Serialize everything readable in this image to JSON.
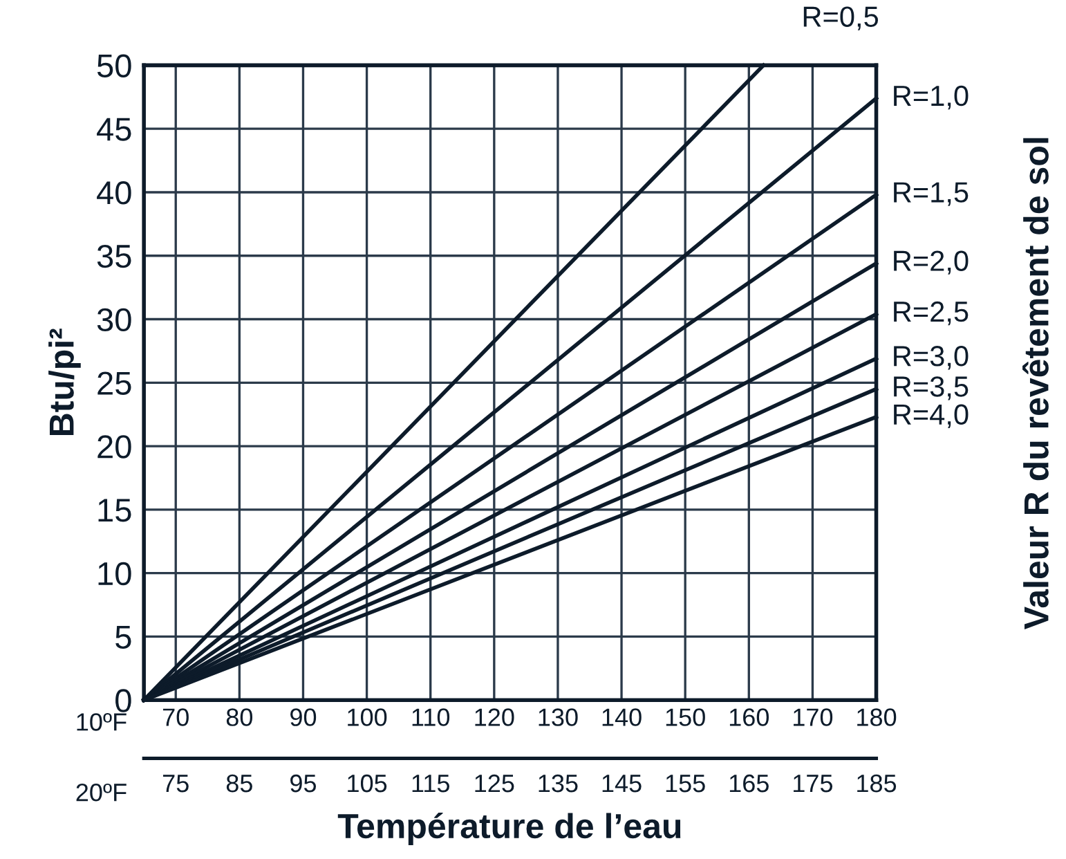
{
  "chart_data": {
    "type": "line",
    "xlabel": "Température de l’eau",
    "ylabel": "Btu/pi²",
    "y2label": "Valeur R du revêtement de sol",
    "annotations": [
      "10ºF",
      "20ºF"
    ],
    "xlim": [
      65,
      180
    ],
    "xticks": [
      70,
      80,
      90,
      100,
      110,
      120,
      130,
      140,
      150,
      160,
      170,
      180
    ],
    "x2lim": [
      70,
      185
    ],
    "x2ticks": [
      75,
      85,
      95,
      105,
      115,
      125,
      135,
      145,
      155,
      165,
      175,
      185
    ],
    "ylim": [
      0,
      50
    ],
    "yticks": [
      0,
      5,
      10,
      15,
      20,
      25,
      30,
      35,
      40,
      45,
      50
    ],
    "grid": true,
    "marker": "none",
    "line_style": "solid",
    "series": [
      {
        "name": "R=0,5",
        "color": "#0d1b2a",
        "x": [
          65,
          162.3
        ],
        "values": [
          0,
          50
        ]
      },
      {
        "name": "R=1,0",
        "color": "#0d1b2a",
        "x": [
          65,
          180
        ],
        "values": [
          0,
          47.4
        ]
      },
      {
        "name": "R=1,5",
        "color": "#0d1b2a",
        "x": [
          65,
          180
        ],
        "values": [
          0,
          39.8
        ]
      },
      {
        "name": "R=2,0",
        "color": "#0d1b2a",
        "x": [
          65,
          180
        ],
        "values": [
          0,
          34.4
        ]
      },
      {
        "name": "R=2,5",
        "color": "#0d1b2a",
        "x": [
          65,
          180
        ],
        "values": [
          0,
          30.4
        ]
      },
      {
        "name": "R=3,0",
        "color": "#0d1b2a",
        "x": [
          65,
          180
        ],
        "values": [
          0,
          26.9
        ]
      },
      {
        "name": "R=3,5",
        "color": "#0d1b2a",
        "x": [
          65,
          180
        ],
        "values": [
          0,
          24.5
        ]
      },
      {
        "name": "R=4,0",
        "color": "#0d1b2a",
        "x": [
          65,
          180
        ],
        "values": [
          0,
          22.3
        ]
      }
    ]
  }
}
